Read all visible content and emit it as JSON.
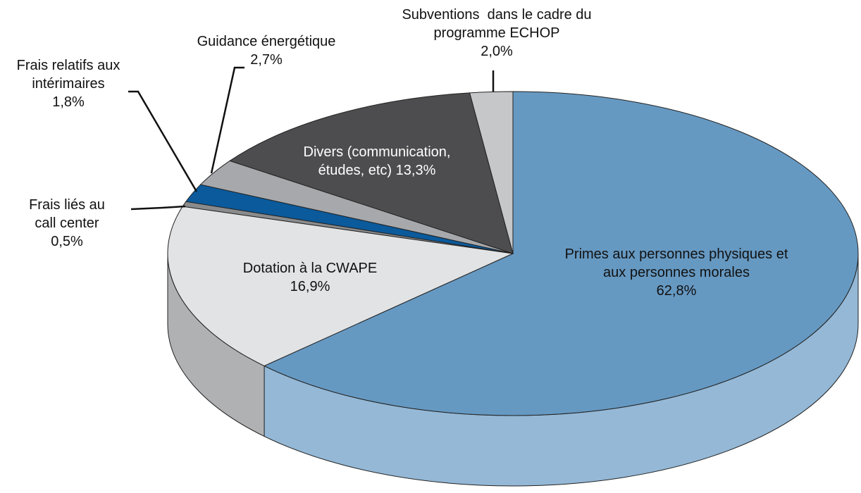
{
  "chart_data": {
    "type": "pie",
    "categories": [
      "Primes aux personnes physiques et aux personnes morales",
      "Dotation à la CWAPE",
      "Frais liés au call center",
      "Frais relatifs aux intérimaires",
      "Guidance énergétique",
      "Divers (communication, études, etc)",
      "Subventions  dans le cadre du programme ECHOP"
    ],
    "values": [
      62.8,
      16.9,
      0.5,
      1.8,
      2.7,
      13.3,
      2.0
    ],
    "value_labels": [
      "62,8%",
      "16,9%",
      "0,5%",
      "1,8%",
      "2,7%",
      "13,3%",
      "2,0%"
    ],
    "colors": [
      "#6699c2",
      "#e2e3e5",
      "#8a8b8d",
      "#0a5a9c",
      "#a6a8ab",
      "#4d4d4f",
      "#c6c7c9"
    ]
  }
}
